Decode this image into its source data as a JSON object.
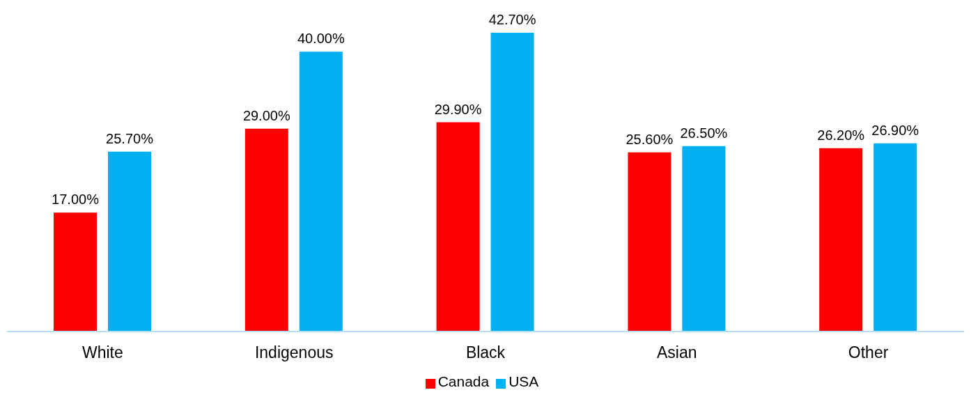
{
  "chart_data": {
    "type": "bar",
    "categories": [
      "White",
      "Indigenous",
      "Black",
      "Asian",
      "Other"
    ],
    "series": [
      {
        "name": "Canada",
        "color": "#ff0000",
        "values": [
          17.0,
          29.0,
          29.9,
          25.6,
          26.2
        ],
        "value_labels": [
          "17.00%",
          "29.00%",
          "29.90%",
          "25.60%",
          "26.20%"
        ]
      },
      {
        "name": "USA",
        "color": "#00b0f0",
        "values": [
          25.7,
          40.0,
          42.7,
          26.5,
          26.9
        ],
        "value_labels": [
          "25.70%",
          "40.00%",
          "42.70%",
          "26.50%",
          "26.90%"
        ]
      }
    ],
    "grid": false,
    "legend": "bottom"
  }
}
